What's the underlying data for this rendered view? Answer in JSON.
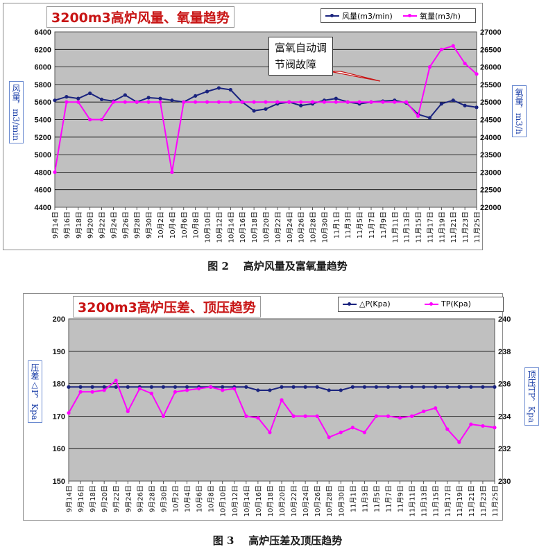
{
  "chart_data": [
    {
      "type": "line",
      "title": "3200m3高炉风量、氧量趋势",
      "ylabel": "风量，m3/min",
      "y2label": "氧量，m3/h",
      "ylim": [
        4400,
        6400
      ],
      "y2lim": [
        22000,
        27000
      ],
      "yticks": [
        "4400",
        "4600",
        "4800",
        "5000",
        "5200",
        "5400",
        "5600",
        "5800",
        "6000",
        "6200",
        "6400"
      ],
      "y2ticks": [
        "22000",
        "22500",
        "23000",
        "23500",
        "24000",
        "24500",
        "25000",
        "25500",
        "26000",
        "26500",
        "27000"
      ],
      "categories": [
        "9月14日",
        "9月16日",
        "9月18日",
        "9月20日",
        "9月22日",
        "9月24日",
        "9月26日",
        "9月28日",
        "9月30日",
        "10月2日",
        "10月4日",
        "10月6日",
        "10月8日",
        "10月10日",
        "10月12日",
        "10月14日",
        "10月16日",
        "10月18日",
        "10月20日",
        "10月22日",
        "10月24日",
        "10月26日",
        "10月28日",
        "10月30日",
        "11月1日",
        "11月3日",
        "11月5日",
        "11月7日",
        "11月9日",
        "11月11日",
        "11月13日",
        "11月15日",
        "11月17日",
        "11月19日",
        "11月21日",
        "11月23日",
        "11月25日"
      ],
      "grid": true,
      "legend_position": "top-right",
      "annotation": [
        "富氧自动调",
        "节阀故障"
      ],
      "series": [
        {
          "name": "风量(m3/min)",
          "axis": "left",
          "color": "#1a237e",
          "values": [
            5620,
            5660,
            5640,
            5700,
            5630,
            5610,
            5680,
            5600,
            5650,
            5640,
            5620,
            5600,
            5670,
            5720,
            5760,
            5740,
            5600,
            5500,
            5520,
            5580,
            5600,
            5560,
            5580,
            5620,
            5640,
            5600,
            5580,
            5600,
            5610,
            5620,
            5590,
            5460,
            5420,
            5580,
            5620,
            5560,
            5540
          ]
        },
        {
          "name": "氧量(m3/h)",
          "axis": "right",
          "color": "#ff00ff",
          "values": [
            23000,
            25000,
            25000,
            24500,
            24500,
            25000,
            25000,
            25000,
            25000,
            25000,
            23000,
            25000,
            25000,
            25000,
            25000,
            25000,
            25000,
            25000,
            25000,
            25000,
            25000,
            25000,
            25000,
            25000,
            25000,
            25000,
            25000,
            25000,
            25000,
            25000,
            25000,
            24600,
            26000,
            26500,
            26600,
            26100,
            25800
          ]
        }
      ]
    },
    {
      "type": "line",
      "title": "3200m3高炉压差、顶压趋势",
      "ylabel": "压差△P，Kpa",
      "y2label": "顶压TP，Kpa",
      "ylim": [
        150,
        200
      ],
      "y2lim": [
        230,
        240
      ],
      "yticks": [
        "150",
        "160",
        "170",
        "180",
        "190",
        "200"
      ],
      "y2ticks": [
        "230",
        "232",
        "234",
        "236",
        "238",
        "240"
      ],
      "categories": [
        "9月14日",
        "9月16日",
        "9月18日",
        "9月20日",
        "9月22日",
        "9月24日",
        "9月26日",
        "9月28日",
        "9月30日",
        "10月2日",
        "10月4日",
        "10月6日",
        "10月8日",
        "10月10日",
        "10月12日",
        "10月14日",
        "10月16日",
        "10月18日",
        "10月20日",
        "10月22日",
        "10月24日",
        "10月26日",
        "10月28日",
        "10月30日",
        "11月1日",
        "11月3日",
        "11月5日",
        "11月7日",
        "11月9日",
        "11月11日",
        "11月13日",
        "11月15日",
        "11月17日",
        "11月19日",
        "11月21日",
        "11月23日",
        "11月25日"
      ],
      "grid": true,
      "legend_position": "top-right",
      "series": [
        {
          "name": "△P(Kpa)",
          "axis": "left",
          "color": "#1a237e",
          "values": [
            179,
            179,
            179,
            179,
            179,
            179,
            179,
            179,
            179,
            179,
            179,
            179,
            179,
            179,
            179,
            179,
            178,
            178,
            179,
            179,
            179,
            179,
            178,
            178,
            179,
            179,
            179,
            179,
            179,
            179,
            179,
            179,
            179,
            179,
            179,
            179,
            179
          ]
        },
        {
          "name": "TP(Kpa)",
          "axis": "right",
          "color": "#ff00ff",
          "values": [
            234.2,
            235.5,
            235.5,
            235.6,
            236.2,
            234.3,
            235.7,
            235.4,
            234.0,
            235.5,
            235.6,
            235.7,
            235.8,
            235.6,
            235.7,
            234.0,
            233.9,
            233.0,
            235.0,
            234.0,
            234.0,
            234.0,
            232.7,
            233.0,
            233.3,
            233.0,
            234.0,
            234.0,
            233.9,
            234.0,
            234.3,
            234.5,
            233.2,
            232.4,
            233.5,
            233.4,
            233.3
          ]
        }
      ]
    }
  ],
  "captions": {
    "fig2": "图 2    高炉风量及富氧量趋势",
    "fig3": "图 3    高炉压差及顶压趋势"
  },
  "colors": {
    "plot_bg": "#c0c0c0",
    "title_red": "#c81414",
    "series_blue": "#1a237e",
    "series_magenta": "#ff00ff"
  }
}
